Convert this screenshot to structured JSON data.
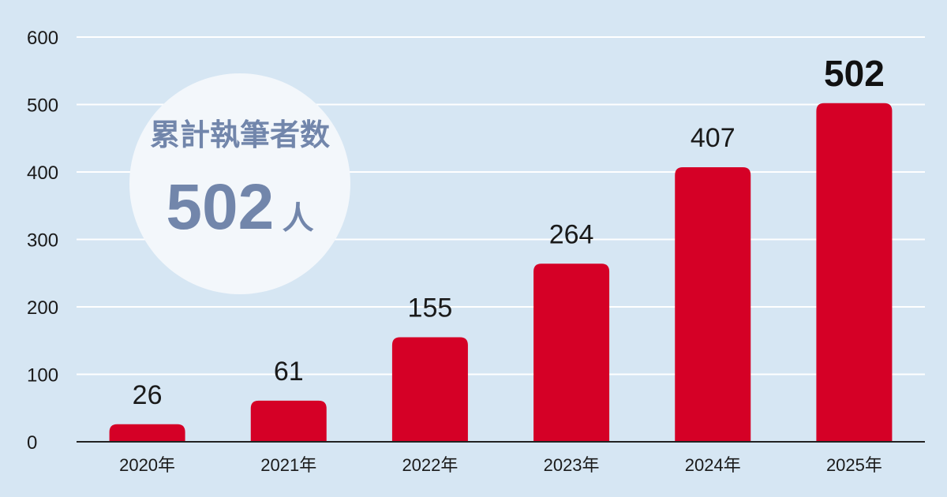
{
  "colors": {
    "background": "#d6e6f3",
    "bar": "#d50026",
    "grid": "#ffffff",
    "axis": "#222222",
    "badge_fill": "#f3f7fb",
    "badge_text": "#7286ab"
  },
  "badge": {
    "title": "累計執筆者数",
    "value": "502",
    "unit": "人"
  },
  "chart_data": {
    "type": "bar",
    "categories": [
      "2020年",
      "2021年",
      "2022年",
      "2023年",
      "2024年",
      "2025年"
    ],
    "values": [
      26,
      61,
      155,
      264,
      407,
      502
    ],
    "data_labels": [
      "26",
      "61",
      "155",
      "264",
      "407",
      "502"
    ],
    "emphasized_index": 5,
    "ylim": [
      0,
      600
    ],
    "yticks": [
      0,
      100,
      200,
      300,
      400,
      500,
      600
    ],
    "ytick_labels": [
      "0",
      "100",
      "200",
      "300",
      "400",
      "500",
      "600"
    ],
    "grid": true,
    "legend": "none",
    "title": "",
    "xlabel": "",
    "ylabel": ""
  }
}
